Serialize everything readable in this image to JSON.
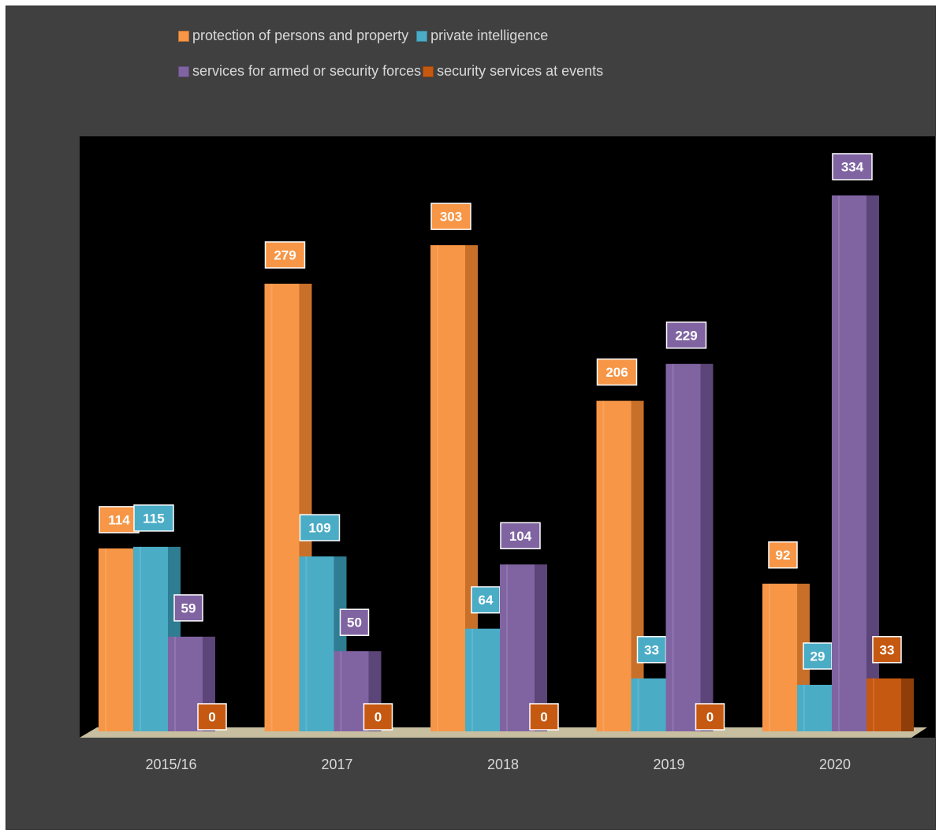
{
  "chart_data": {
    "type": "bar",
    "categories": [
      "2015/16",
      "2017",
      "2018",
      "2019",
      "2020"
    ],
    "series": [
      {
        "name": "protection of persons and property",
        "color": "#f79646",
        "side": "#c8702a",
        "values": [
          114,
          279,
          303,
          206,
          92
        ]
      },
      {
        "name": "private intelligence",
        "color": "#4bacc6",
        "side": "#2e7d92",
        "values": [
          115,
          109,
          64,
          33,
          29
        ]
      },
      {
        "name": "services for armed or security forces",
        "color": "#8064a2",
        "side": "#5c4578",
        "values": [
          59,
          50,
          104,
          229,
          334
        ]
      },
      {
        "name": "security services at events",
        "color": "#c65911",
        "side": "#8f3e0a",
        "values": [
          0,
          0,
          0,
          0,
          33
        ]
      }
    ],
    "ylim": [
      0,
      334
    ],
    "grid": false,
    "legend_position": "top",
    "plot_background": "#000000",
    "chart_background": "#404040",
    "floor_color": "#c8bfa0",
    "label_text_color": "#ffffff",
    "axis_label_color": "#d9d9d9"
  }
}
